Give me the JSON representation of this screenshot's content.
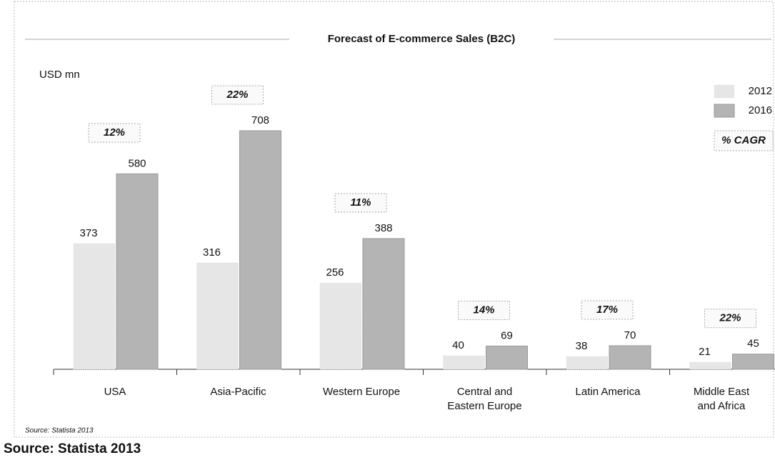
{
  "chart_data": {
    "type": "bar",
    "title": "Forecast of E-commerce Sales (B2C)",
    "ylabel": "USD mn",
    "categories": [
      "USA",
      "Asia-Pacific",
      "Western Europe",
      "Central and\nEastern Europe",
      "Latin America",
      "Middle East\nand Africa"
    ],
    "series": [
      {
        "name": "2012",
        "color": "#e6e6e6",
        "values": [
          373,
          316,
          256,
          40,
          38,
          21
        ]
      },
      {
        "name": "2016",
        "color": "#b4b4b4",
        "values": [
          580,
          708,
          388,
          69,
          70,
          45
        ]
      }
    ],
    "cagr": {
      "name": "% CAGR",
      "values": [
        12,
        22,
        11,
        14,
        17,
        22
      ],
      "value_labels": [
        "12%",
        "22%",
        "11%",
        "14%",
        "17%",
        "22%"
      ]
    },
    "legend": "upper right",
    "source": "Source: Statista 2013",
    "source_caption": "Source: Statista 2013"
  }
}
